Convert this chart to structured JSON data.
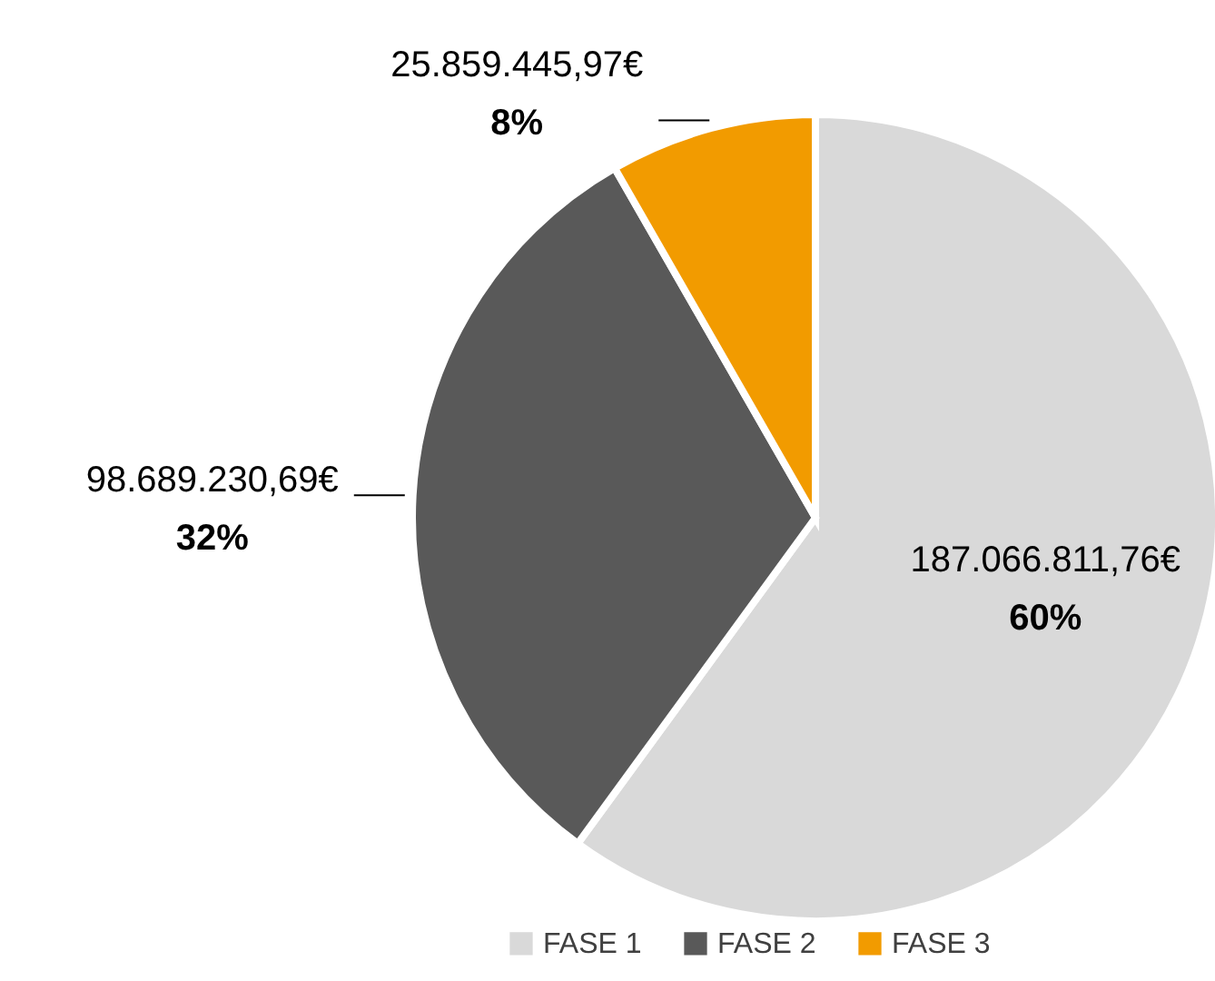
{
  "chart_data": {
    "type": "pie",
    "categories": [
      "FASE 1",
      "FASE 2",
      "FASE 3"
    ],
    "values": [
      187066811.76,
      98689230.69,
      25859445.97
    ],
    "colors": [
      "#d9d9d9",
      "#595959",
      "#f29b00"
    ],
    "value_labels": [
      "187.066.811,76€",
      "98.689.230,69€",
      "25.859.445,97€"
    ],
    "annotations": [
      "60%",
      "32%",
      "8%"
    ],
    "legend": "bottom"
  }
}
